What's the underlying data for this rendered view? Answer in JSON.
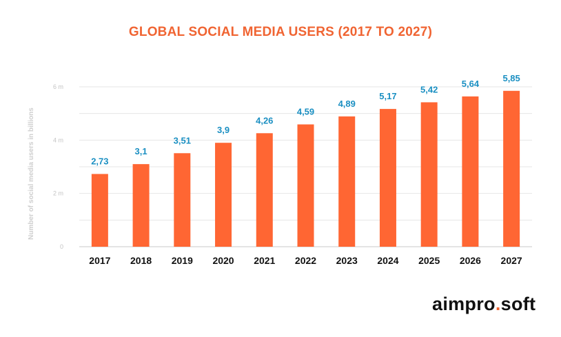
{
  "colors": {
    "bar": "#ff6633",
    "title": "#f06432",
    "label": "#1a8fc2",
    "grid": "#e6e6e6",
    "axis": "#c8c8c8"
  },
  "logo": {
    "part1": "aimpro",
    "dot": ".",
    "part2": "soft"
  },
  "chart_data": {
    "type": "bar",
    "title": "GLOBAL SOCIAL MEDIA USERS (2017 TO 2027)",
    "ylabel": "Number of social media users in billions",
    "xlabel": "",
    "categories": [
      "2017",
      "2018",
      "2019",
      "2020",
      "2021",
      "2022",
      "2023",
      "2024",
      "2025",
      "2026",
      "2027"
    ],
    "values": [
      2.73,
      3.1,
      3.51,
      3.9,
      4.26,
      4.59,
      4.89,
      5.17,
      5.42,
      5.64,
      5.85
    ],
    "data_labels": [
      "2,73",
      "3,1",
      "3,51",
      "3,9",
      "4,26",
      "4,59",
      "4,89",
      "5,17",
      "5,42",
      "5,64",
      "5,85"
    ],
    "ylim": [
      0,
      6
    ],
    "yticks": [
      {
        "value": 0,
        "label": "0"
      },
      {
        "value": 2,
        "label": "2 m"
      },
      {
        "value": 4,
        "label": "4 m"
      },
      {
        "value": 6,
        "label": "6 m"
      }
    ],
    "grid": true
  }
}
